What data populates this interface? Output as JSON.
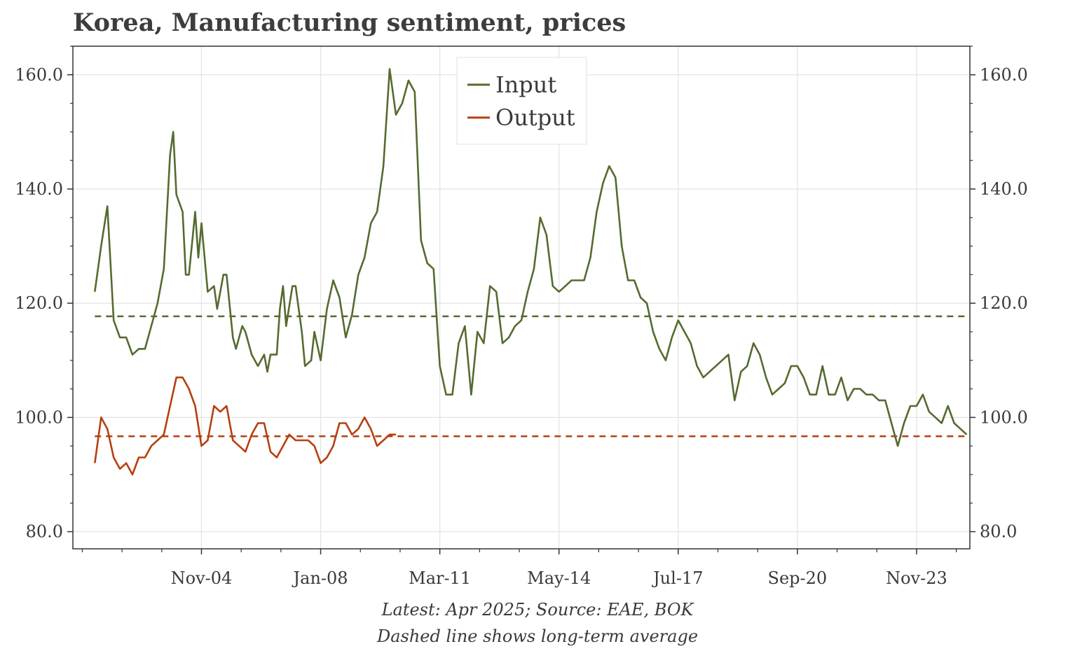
{
  "title": "Korea, Manufacturing sentiment, prices",
  "footer": {
    "line1": "Latest: Apr 2025; Source: EAE, BOK",
    "line2": "Dashed line shows long-term average"
  },
  "colors": {
    "input": "#556b2f",
    "output": "#b5400f",
    "grid": "#e3e3e3",
    "axis": "#333333"
  },
  "chart_data": {
    "type": "line",
    "x_range": [
      "2001-06",
      "2025-04"
    ],
    "y_range": [
      77,
      165
    ],
    "y_ticks": [
      80,
      100,
      120,
      140,
      160
    ],
    "y_tick_labels": [
      "80.0",
      "100.0",
      "120.0",
      "140.0",
      "160.0"
    ],
    "x_ticks": [
      "2004-11",
      "2008-01",
      "2011-03",
      "2014-05",
      "2017-07",
      "2020-09",
      "2023-11"
    ],
    "x_tick_labels": [
      "Nov-04",
      "Jan-08",
      "Mar-11",
      "May-14",
      "Jul-17",
      "Sep-20",
      "Nov-23"
    ],
    "grid": true,
    "legend_position": "top-center",
    "series": [
      {
        "name": "Input",
        "average": 117.7,
        "points": [
          [
            "2002-01",
            122
          ],
          [
            "2002-03",
            130
          ],
          [
            "2002-05",
            137
          ],
          [
            "2002-07",
            117
          ],
          [
            "2002-09",
            114
          ],
          [
            "2002-11",
            114
          ],
          [
            "2003-01",
            111
          ],
          [
            "2003-03",
            112
          ],
          [
            "2003-05",
            112
          ],
          [
            "2003-07",
            116
          ],
          [
            "2003-09",
            120
          ],
          [
            "2003-11",
            126
          ],
          [
            "2004-01",
            146
          ],
          [
            "2004-02",
            150
          ],
          [
            "2004-03",
            139
          ],
          [
            "2004-05",
            136
          ],
          [
            "2004-06",
            125
          ],
          [
            "2004-07",
            125
          ],
          [
            "2004-09",
            136
          ],
          [
            "2004-10",
            128
          ],
          [
            "2004-11",
            134
          ],
          [
            "2005-01",
            122
          ],
          [
            "2005-03",
            123
          ],
          [
            "2005-04",
            119
          ],
          [
            "2005-06",
            125
          ],
          [
            "2005-07",
            125
          ],
          [
            "2005-09",
            114
          ],
          [
            "2005-10",
            112
          ],
          [
            "2005-12",
            116
          ],
          [
            "2006-01",
            115
          ],
          [
            "2006-03",
            111
          ],
          [
            "2006-05",
            109
          ],
          [
            "2006-07",
            111
          ],
          [
            "2006-08",
            108
          ],
          [
            "2006-09",
            111
          ],
          [
            "2006-11",
            111
          ],
          [
            "2006-12",
            119
          ],
          [
            "2007-01",
            123
          ],
          [
            "2007-02",
            116
          ],
          [
            "2007-04",
            123
          ],
          [
            "2007-05",
            123
          ],
          [
            "2007-07",
            115
          ],
          [
            "2007-08",
            109
          ],
          [
            "2007-10",
            110
          ],
          [
            "2007-11",
            115
          ],
          [
            "2008-01",
            110
          ],
          [
            "2008-03",
            119
          ],
          [
            "2008-05",
            124
          ],
          [
            "2008-07",
            121
          ],
          [
            "2008-09",
            114
          ],
          [
            "2008-11",
            118
          ],
          [
            "2009-01",
            125
          ],
          [
            "2009-03",
            128
          ],
          [
            "2009-05",
            134
          ],
          [
            "2009-07",
            136
          ],
          [
            "2009-09",
            144
          ],
          [
            "2009-11",
            161
          ],
          [
            "2010-01",
            153
          ],
          [
            "2010-03",
            155
          ],
          [
            "2010-05",
            159
          ],
          [
            "2010-07",
            157
          ],
          [
            "2010-09",
            131
          ],
          [
            "2010-11",
            127
          ],
          [
            "2011-01",
            126
          ],
          [
            "2011-03",
            109
          ],
          [
            "2011-05",
            104
          ],
          [
            "2011-07",
            104
          ],
          [
            "2011-09",
            113
          ],
          [
            "2011-11",
            116
          ],
          [
            "2012-01",
            104
          ],
          [
            "2012-03",
            115
          ],
          [
            "2012-05",
            113
          ],
          [
            "2012-07",
            123
          ],
          [
            "2012-09",
            122
          ],
          [
            "2012-11",
            113
          ],
          [
            "2013-01",
            114
          ],
          [
            "2013-03",
            116
          ],
          [
            "2013-05",
            117
          ],
          [
            "2013-07",
            122
          ],
          [
            "2013-09",
            126
          ],
          [
            "2013-11",
            135
          ],
          [
            "2014-01",
            132
          ],
          [
            "2014-03",
            123
          ],
          [
            "2014-05",
            122
          ],
          [
            "2014-07",
            123
          ],
          [
            "2014-09",
            124
          ],
          [
            "2014-11",
            124
          ],
          [
            "2015-01",
            124
          ],
          [
            "2015-03",
            128
          ],
          [
            "2015-05",
            136
          ],
          [
            "2015-07",
            141
          ],
          [
            "2015-09",
            144
          ],
          [
            "2015-11",
            142
          ],
          [
            "2016-01",
            130
          ],
          [
            "2016-03",
            124
          ],
          [
            "2016-05",
            124
          ],
          [
            "2016-07",
            121
          ],
          [
            "2016-09",
            120
          ],
          [
            "2016-11",
            115
          ],
          [
            "2017-01",
            112
          ],
          [
            "2017-03",
            110
          ],
          [
            "2017-05",
            114
          ],
          [
            "2017-07",
            117
          ],
          [
            "2017-09",
            115
          ],
          [
            "2017-11",
            113
          ],
          [
            "2018-01",
            109
          ],
          [
            "2018-03",
            107
          ],
          [
            "2018-05",
            108
          ],
          [
            "2018-07",
            109
          ],
          [
            "2018-09",
            110
          ],
          [
            "2018-11",
            111
          ],
          [
            "2019-01",
            103
          ],
          [
            "2019-03",
            108
          ],
          [
            "2019-05",
            109
          ],
          [
            "2019-07",
            113
          ],
          [
            "2019-09",
            111
          ],
          [
            "2019-11",
            107
          ],
          [
            "2020-01",
            104
          ],
          [
            "2020-03",
            105
          ],
          [
            "2020-05",
            106
          ],
          [
            "2020-07",
            109
          ],
          [
            "2020-09",
            109
          ],
          [
            "2020-11",
            107
          ],
          [
            "2021-01",
            104
          ],
          [
            "2021-03",
            104
          ],
          [
            "2021-05",
            109
          ],
          [
            "2021-07",
            104
          ],
          [
            "2021-09",
            104
          ],
          [
            "2021-11",
            107
          ],
          [
            "2022-01",
            103
          ],
          [
            "2022-03",
            105
          ],
          [
            "2022-05",
            105
          ],
          [
            "2022-07",
            104
          ],
          [
            "2022-09",
            104
          ],
          [
            "2022-11",
            103
          ],
          [
            "2023-01",
            103
          ],
          [
            "2023-03",
            99
          ],
          [
            "2023-05",
            95
          ],
          [
            "2023-07",
            99
          ],
          [
            "2023-09",
            102
          ],
          [
            "2023-11",
            102
          ],
          [
            "2024-01",
            104
          ],
          [
            "2024-03",
            101
          ],
          [
            "2024-05",
            100
          ],
          [
            "2024-07",
            99
          ],
          [
            "2024-09",
            102
          ],
          [
            "2024-11",
            99
          ],
          [
            "2025-01",
            98
          ],
          [
            "2025-03",
            97
          ]
        ]
      },
      {
        "name": "Output",
        "average": 96.7,
        "points": [
          [
            "2002-01",
            92
          ],
          [
            "2002-03",
            100
          ],
          [
            "2002-05",
            98
          ],
          [
            "2002-07",
            93
          ],
          [
            "2002-09",
            91
          ],
          [
            "2002-11",
            92
          ],
          [
            "2003-01",
            90
          ],
          [
            "2003-03",
            93
          ],
          [
            "2003-05",
            93
          ],
          [
            "2003-07",
            95
          ],
          [
            "2003-09",
            96
          ],
          [
            "2003-11",
            97
          ],
          [
            "2004-01",
            102
          ],
          [
            "2004-03",
            107
          ],
          [
            "2004-05",
            107
          ],
          [
            "2004-07",
            105
          ],
          [
            "2004-09",
            102
          ],
          [
            "2004-11",
            95
          ],
          [
            "2005-01",
            96
          ],
          [
            "2005-03",
            102
          ],
          [
            "2005-05",
            101
          ],
          [
            "2005-07",
            102
          ],
          [
            "2005-09",
            96
          ],
          [
            "2005-11",
            95
          ],
          [
            "2006-01",
            94
          ],
          [
            "2006-03",
            97
          ],
          [
            "2006-05",
            99
          ],
          [
            "2006-07",
            99
          ],
          [
            "2006-09",
            94
          ],
          [
            "2006-11",
            93
          ],
          [
            "2007-01",
            95
          ],
          [
            "2007-03",
            97
          ],
          [
            "2007-05",
            96
          ],
          [
            "2007-07",
            96
          ],
          [
            "2007-09",
            96
          ],
          [
            "2007-11",
            95
          ],
          [
            "2008-01",
            92
          ],
          [
            "2008-03",
            93
          ],
          [
            "2008-05",
            95
          ],
          [
            "2008-07",
            99
          ],
          [
            "2008-09",
            99
          ],
          [
            "2008-11",
            97
          ],
          [
            "2009-01",
            98
          ],
          [
            "2009-03",
            100
          ],
          [
            "2009-05",
            98
          ],
          [
            "2009-07",
            95
          ],
          [
            "2009-09",
            96
          ],
          [
            "2009-11",
            97
          ],
          [
            "2010-01",
            97
          ]
        ]
      }
    ]
  }
}
